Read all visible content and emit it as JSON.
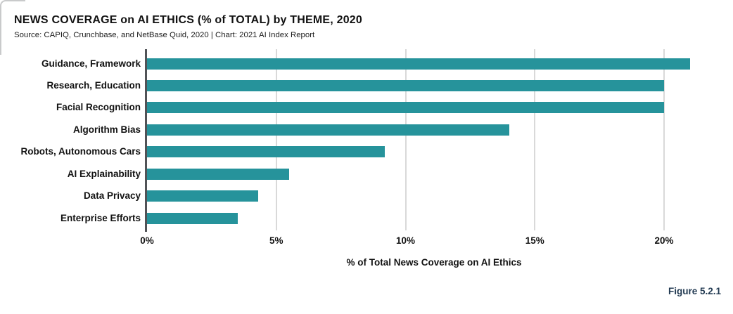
{
  "header": {
    "title": "NEWS COVERAGE on AI ETHICS (% of TOTAL) by THEME, 2020",
    "source": "Source: CAPIQ, Crunchbase, and NetBase Quid, 2020 | Chart: 2021 AI Index Report"
  },
  "figure_label": "Figure 5.2.1",
  "chart_data": {
    "type": "bar",
    "orientation": "horizontal",
    "title": "NEWS COVERAGE on AI ETHICS (% of TOTAL) by THEME, 2020",
    "categories": [
      "Guidance, Framework",
      "Research, Education",
      "Facial Recognition",
      "Algorithm Bias",
      "Robots, Autonomous Cars",
      "AI Explainability",
      "Data Privacy",
      "Enterprise Efforts"
    ],
    "values": [
      21,
      20,
      20,
      14,
      9.2,
      5.5,
      4.3,
      3.5
    ],
    "xlabel": "% of Total News Coverage on AI Ethics",
    "ylabel": "",
    "xticks": [
      {
        "value": 0,
        "label": "0%"
      },
      {
        "value": 5,
        "label": "5%"
      },
      {
        "value": 10,
        "label": "10%"
      },
      {
        "value": 15,
        "label": "15%"
      },
      {
        "value": 20,
        "label": "20%"
      }
    ],
    "xlim": [
      0,
      22.2
    ],
    "grid": "vertical-gridlines-on",
    "legend": "none",
    "colors": {
      "bar": "#26939B",
      "axis_line": "#515357",
      "gridline": "#d9d9d9",
      "text": "#121212",
      "figure_label": "#223A52"
    }
  }
}
